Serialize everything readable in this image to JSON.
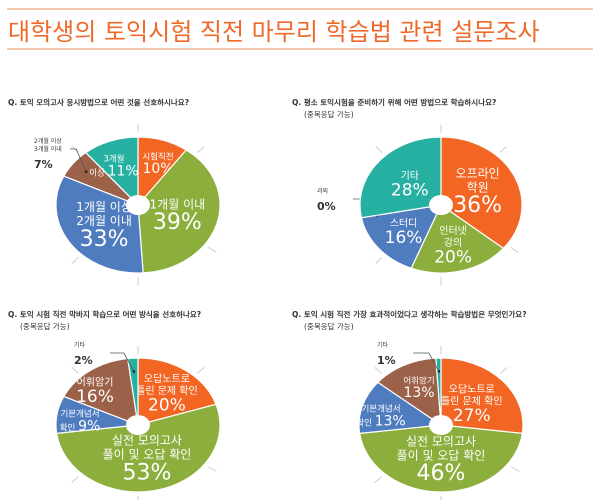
{
  "title": "대학생의 토익시험 직전 마무리 학습법 관련 설문조사",
  "colors": {
    "title": "#ef6a2a",
    "orange": "#f26522",
    "green": "#8cae3c",
    "blue": "#4f7bbf",
    "brown": "#9c6149",
    "teal": "#26b0a1"
  },
  "chart_data": [
    {
      "type": "pie",
      "title": "Q. 토익 모의고사 응시방법으로 어떤 것을 선호하시나요?",
      "subtitle": "",
      "slices": [
        {
          "label": [
            "시험직전"
          ],
          "value": 10,
          "color": "#f26522"
        },
        {
          "label": [
            "1개월 이내"
          ],
          "value": 39,
          "color": "#8cae3c"
        },
        {
          "label": [
            "1개월 이상",
            "2개월 이내"
          ],
          "value": 33,
          "color": "#4f7bbf"
        },
        {
          "label": [
            "2개월 이상",
            "3개월 이내"
          ],
          "value": 7,
          "color": "#9c6149",
          "outside": true
        },
        {
          "label": [
            "3개월",
            "이상"
          ],
          "value": 11,
          "color": "#26b0a1"
        }
      ]
    },
    {
      "type": "pie",
      "title": "Q. 평소 토익시험을 준비하기 위해 어떤 방법으로 학습하시나요?",
      "subtitle": "(중복응답 가능)",
      "slices": [
        {
          "label": [
            "오프라인",
            "학원"
          ],
          "value": 36,
          "color": "#f26522"
        },
        {
          "label": [
            "인터넷",
            "강의"
          ],
          "value": 20,
          "color": "#8cae3c"
        },
        {
          "label": [
            "스터디"
          ],
          "value": 16,
          "color": "#4f7bbf"
        },
        {
          "label": [
            "과외"
          ],
          "value": 0,
          "color": "#9c6149",
          "outside": true
        },
        {
          "label": [
            "기타"
          ],
          "value": 28,
          "color": "#26b0a1"
        }
      ]
    },
    {
      "type": "pie",
      "title": "Q. 토익 시험 직전 막바지 학습으로 어떤 방식을 선호하나요?",
      "subtitle": "(중복응답 가능)",
      "slices": [
        {
          "label": [
            "오답노트로",
            "틀린 문제 확인"
          ],
          "value": 20,
          "color": "#f26522"
        },
        {
          "label": [
            "실전 모의고사",
            "풀이 및 오답 확인"
          ],
          "value": 53,
          "color": "#8cae3c"
        },
        {
          "label": [
            "기본개념서",
            "확인"
          ],
          "value": 9,
          "color": "#4f7bbf"
        },
        {
          "label": [
            "어휘암기"
          ],
          "value": 16,
          "color": "#9c6149"
        },
        {
          "label": [
            "기타"
          ],
          "value": 2,
          "color": "#26b0a1",
          "outside": true
        }
      ]
    },
    {
      "type": "pie",
      "title": "Q. 토익 시험 직전 가장 효과적이었다고 생각하는 학습방법은 무엇인가요?",
      "subtitle": "(중복응답 가능)",
      "slices": [
        {
          "label": [
            "오답노트로",
            "틀린 문제 확인"
          ],
          "value": 27,
          "color": "#f26522"
        },
        {
          "label": [
            "실전 모의고사",
            "풀이 및 오답 확인"
          ],
          "value": 46,
          "color": "#8cae3c"
        },
        {
          "label": [
            "기본개념서",
            "확인"
          ],
          "value": 13,
          "color": "#4f7bbf"
        },
        {
          "label": [
            "어휘암기"
          ],
          "value": 13,
          "color": "#9c6149"
        },
        {
          "label": [
            "기타"
          ],
          "value": 1,
          "color": "#26b0a1",
          "outside": true
        }
      ]
    }
  ]
}
